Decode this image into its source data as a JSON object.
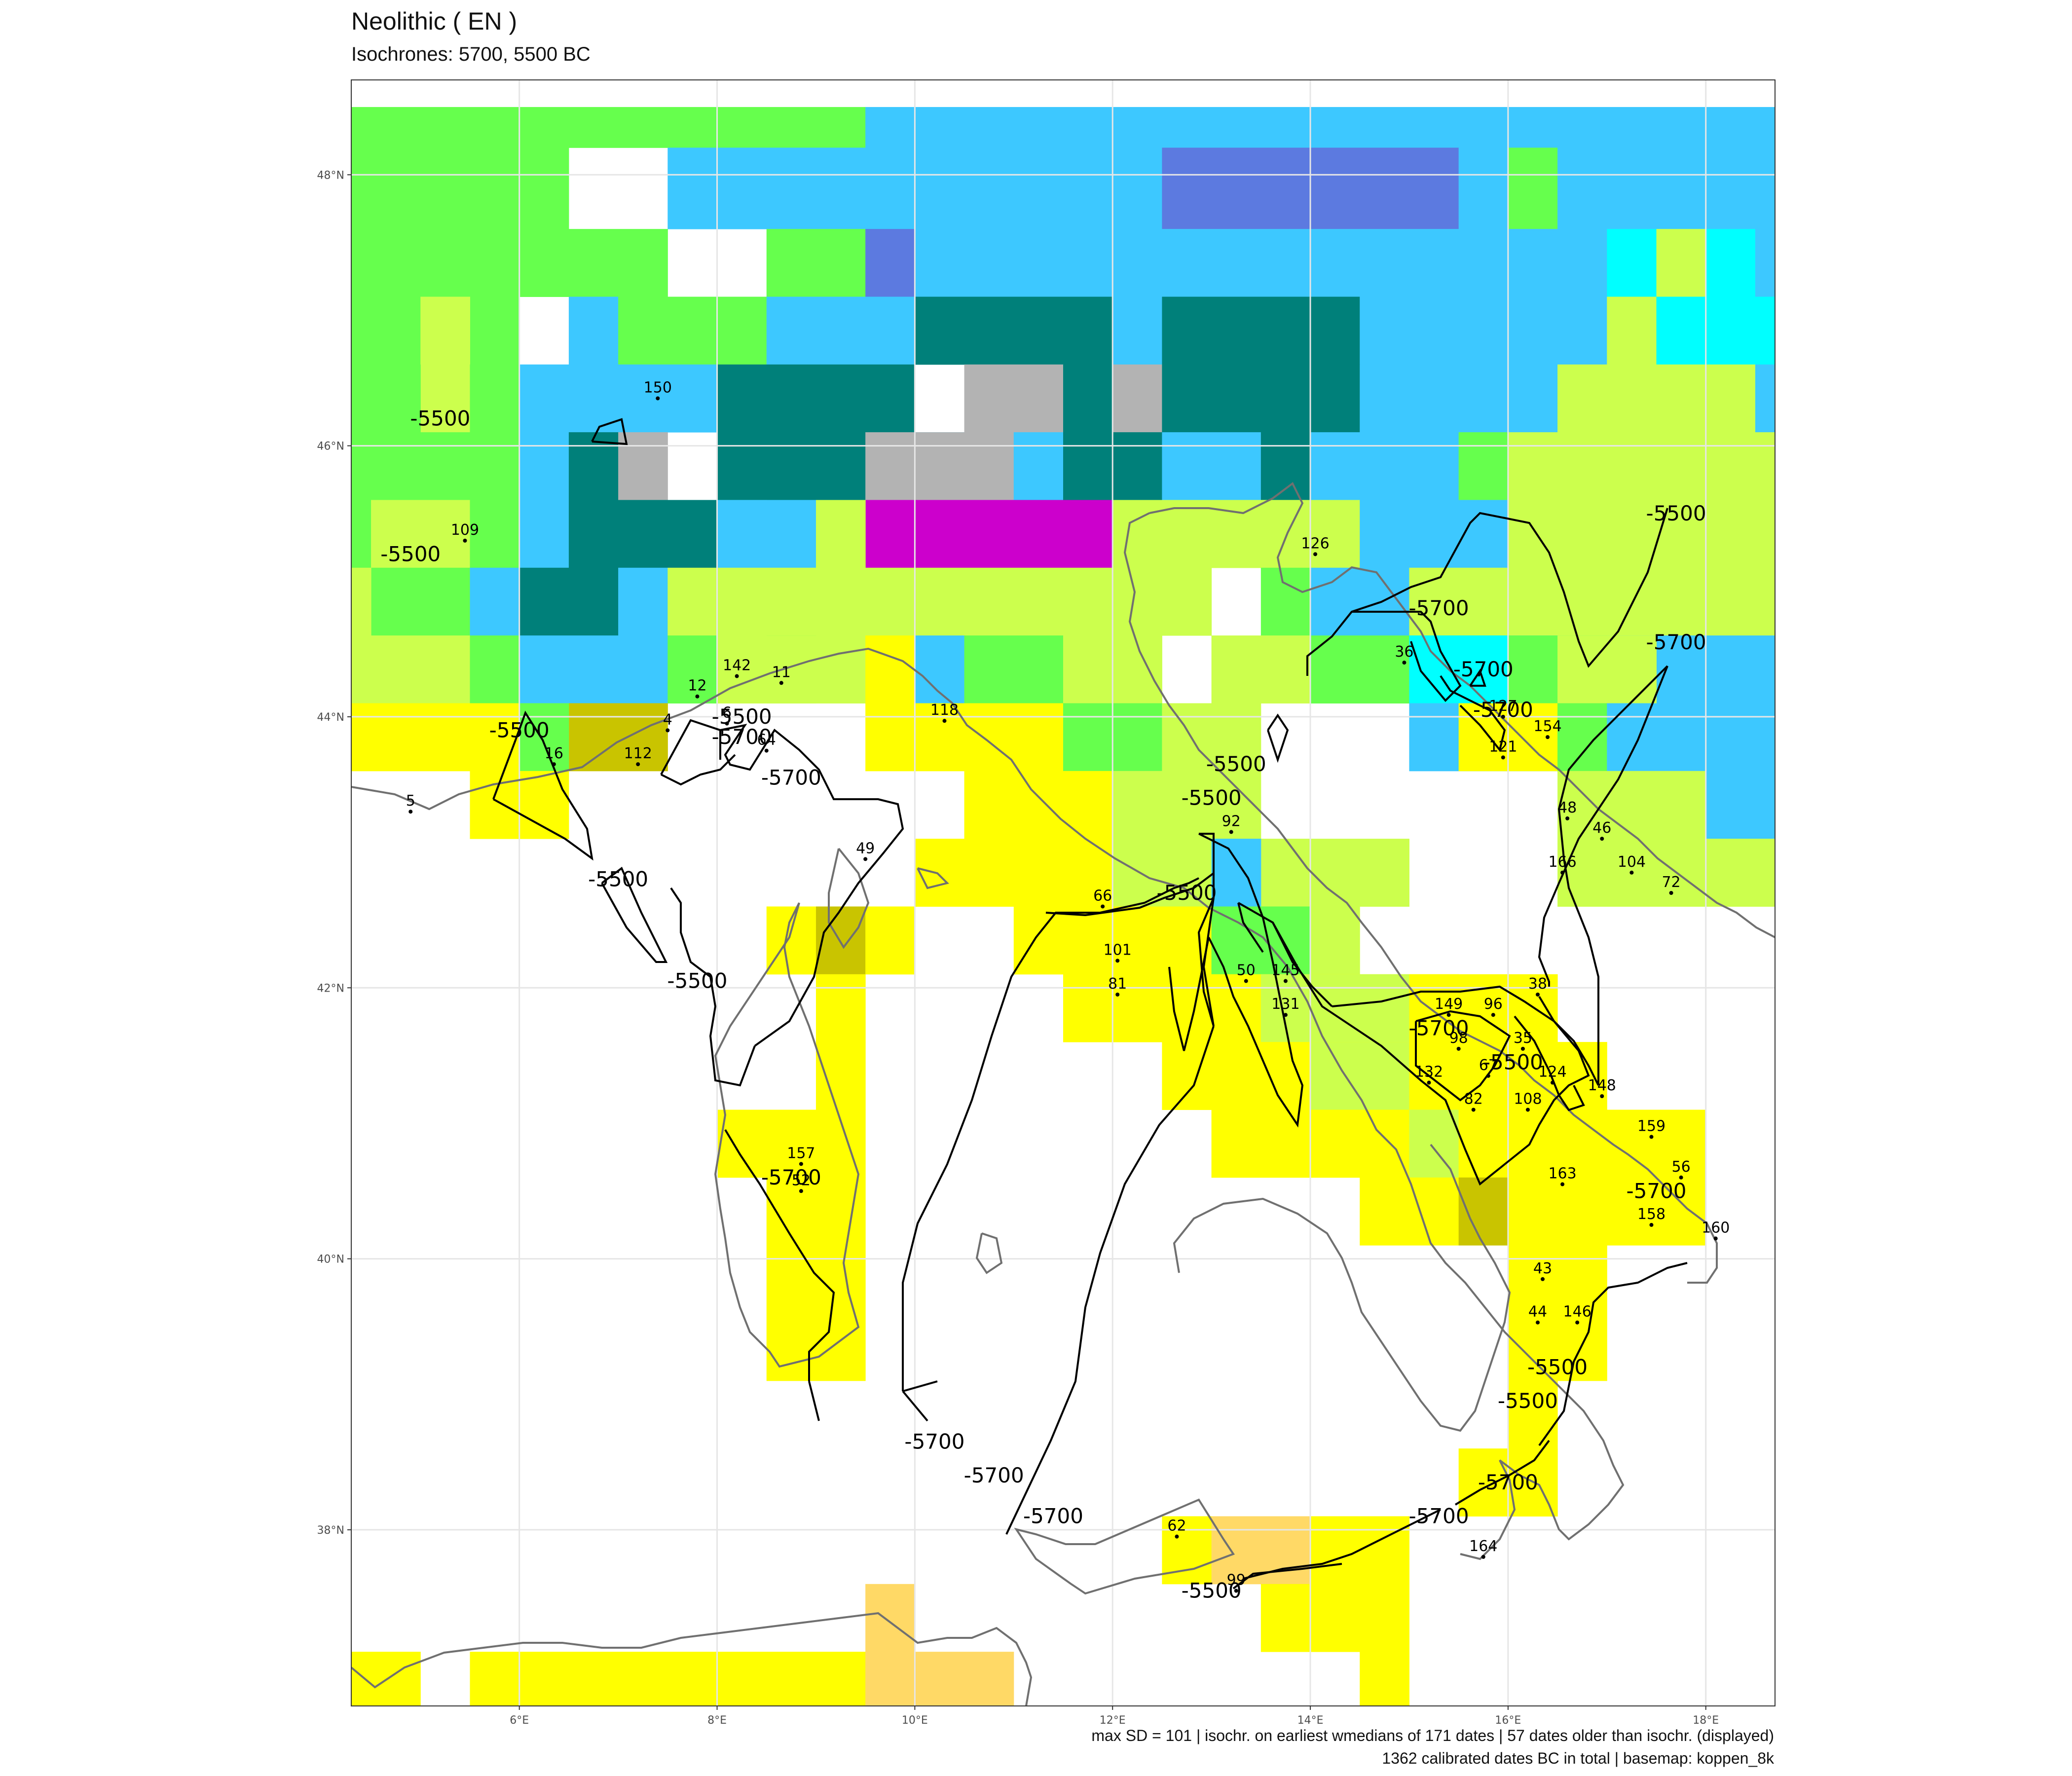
{
  "title": "Neolithic ( EN )",
  "subtitle": "Isochrones: 5700, 5500 BC",
  "caption_line1": "max SD = 101 | isochr. on earliest wmedians of 171 dates | 57 dates older than isochr. (displayed)",
  "caption_line2": "1362 calibrated dates BC in total | basemap: koppen_8k",
  "axes": {
    "x_ticks": [
      "6°E",
      "8°E",
      "10°E",
      "12°E",
      "14°E",
      "16°E",
      "18°E"
    ],
    "y_ticks": [
      "38°N",
      "40°N",
      "42°N",
      "44°N",
      "46°N",
      "48°N"
    ],
    "lon_range": [
      4.3,
      18.7
    ],
    "lat_range": [
      36.7,
      48.7
    ]
  },
  "colors": {
    "green": "#66ff4d",
    "yellowgreen": "#ccff4d",
    "lightblue": "#3dc8ff",
    "teal": "#00807a",
    "grey": "#b3b3b3",
    "magenta": "#cc00cc",
    "periwinkle": "#5c7ae0",
    "cyan": "#00ffff",
    "yellow": "#ffff00",
    "olive": "#c9c400",
    "peach": "#ffd966"
  },
  "isochrone_labels": [
    {
      "text": "-5500",
      "lon": 5.2,
      "lat": 46.2
    },
    {
      "text": "-5500",
      "lon": 4.9,
      "lat": 45.2
    },
    {
      "text": "-5500",
      "lon": 6.0,
      "lat": 43.9
    },
    {
      "text": "-5500",
      "lon": 8.25,
      "lat": 44.0
    },
    {
      "text": "-5700",
      "lon": 8.25,
      "lat": 43.85
    },
    {
      "text": "-5700",
      "lon": 8.75,
      "lat": 43.55
    },
    {
      "text": "-5500",
      "lon": 7.0,
      "lat": 42.8
    },
    {
      "text": "-5500",
      "lon": 7.8,
      "lat": 42.05
    },
    {
      "text": "-5700",
      "lon": 8.75,
      "lat": 40.6
    },
    {
      "text": "-5700",
      "lon": 10.2,
      "lat": 38.65
    },
    {
      "text": "-5700",
      "lon": 10.8,
      "lat": 38.4
    },
    {
      "text": "-5700",
      "lon": 11.4,
      "lat": 38.1
    },
    {
      "text": "-5500",
      "lon": 13.25,
      "lat": 43.65
    },
    {
      "text": "-5500",
      "lon": 13.0,
      "lat": 43.4
    },
    {
      "text": "-5500",
      "lon": 12.75,
      "lat": 42.7
    },
    {
      "text": "-5700",
      "lon": 15.3,
      "lat": 44.8
    },
    {
      "text": "-5700",
      "lon": 15.75,
      "lat": 44.35
    },
    {
      "text": "-5700",
      "lon": 15.95,
      "lat": 44.05
    },
    {
      "text": "-5500",
      "lon": 17.7,
      "lat": 45.5
    },
    {
      "text": "-5700",
      "lon": 17.7,
      "lat": 44.55
    },
    {
      "text": "-5700",
      "lon": 15.3,
      "lat": 41.7
    },
    {
      "text": "-5500",
      "lon": 16.05,
      "lat": 41.45
    },
    {
      "text": "-5700",
      "lon": 17.5,
      "lat": 40.5
    },
    {
      "text": "-5500",
      "lon": 16.5,
      "lat": 39.2
    },
    {
      "text": "-5500",
      "lon": 16.2,
      "lat": 38.95
    },
    {
      "text": "-5700",
      "lon": 16.0,
      "lat": 38.35
    },
    {
      "text": "-5700",
      "lon": 15.3,
      "lat": 38.1
    },
    {
      "text": "-5500",
      "lon": 13.0,
      "lat": 37.55
    }
  ],
  "sites": [
    {
      "id": "150",
      "lon": 7.4,
      "lat": 46.35
    },
    {
      "id": "109",
      "lon": 5.45,
      "lat": 45.3
    },
    {
      "id": "16",
      "lon": 6.35,
      "lat": 43.65
    },
    {
      "id": "5",
      "lon": 4.9,
      "lat": 43.3
    },
    {
      "id": "12",
      "lon": 7.8,
      "lat": 44.15
    },
    {
      "id": "142",
      "lon": 8.2,
      "lat": 44.3
    },
    {
      "id": "11",
      "lon": 8.65,
      "lat": 44.25
    },
    {
      "id": "4",
      "lon": 7.5,
      "lat": 43.9
    },
    {
      "id": "112",
      "lon": 7.2,
      "lat": 43.65
    },
    {
      "id": "64",
      "lon": 8.5,
      "lat": 43.75
    },
    {
      "id": "6",
      "lon": 8.1,
      "lat": 43.95
    },
    {
      "id": "118",
      "lon": 10.3,
      "lat": 43.97
    },
    {
      "id": "49",
      "lon": 9.5,
      "lat": 42.95
    },
    {
      "id": "157",
      "lon": 8.85,
      "lat": 40.7
    },
    {
      "id": "52",
      "lon": 8.85,
      "lat": 40.5
    },
    {
      "id": "66",
      "lon": 11.9,
      "lat": 42.6
    },
    {
      "id": "101",
      "lon": 12.05,
      "lat": 42.2
    },
    {
      "id": "81",
      "lon": 12.05,
      "lat": 41.95
    },
    {
      "id": "92",
      "lon": 13.2,
      "lat": 43.15
    },
    {
      "id": "50",
      "lon": 13.35,
      "lat": 42.05
    },
    {
      "id": "145",
      "lon": 13.75,
      "lat": 42.05
    },
    {
      "id": "131",
      "lon": 13.75,
      "lat": 41.8
    },
    {
      "id": "126",
      "lon": 14.05,
      "lat": 45.2
    },
    {
      "id": "36",
      "lon": 14.95,
      "lat": 44.4
    },
    {
      "id": "127",
      "lon": 15.95,
      "lat": 44.0
    },
    {
      "id": "154",
      "lon": 16.4,
      "lat": 43.85
    },
    {
      "id": "121",
      "lon": 15.95,
      "lat": 43.7
    },
    {
      "id": "48",
      "lon": 16.6,
      "lat": 43.25
    },
    {
      "id": "46",
      "lon": 16.95,
      "lat": 43.1
    },
    {
      "id": "166",
      "lon": 16.55,
      "lat": 42.85
    },
    {
      "id": "104",
      "lon": 17.25,
      "lat": 42.85
    },
    {
      "id": "72",
      "lon": 17.65,
      "lat": 42.7
    },
    {
      "id": "38",
      "lon": 16.3,
      "lat": 41.95
    },
    {
      "id": "149",
      "lon": 15.4,
      "lat": 41.8
    },
    {
      "id": "96",
      "lon": 15.85,
      "lat": 41.8
    },
    {
      "id": "35",
      "lon": 16.15,
      "lat": 41.55
    },
    {
      "id": "98",
      "lon": 15.5,
      "lat": 41.55
    },
    {
      "id": "67",
      "lon": 15.8,
      "lat": 41.35
    },
    {
      "id": "132",
      "lon": 15.2,
      "lat": 41.3
    },
    {
      "id": "124",
      "lon": 16.45,
      "lat": 41.3
    },
    {
      "id": "82",
      "lon": 15.65,
      "lat": 41.1
    },
    {
      "id": "108",
      "lon": 16.2,
      "lat": 41.1
    },
    {
      "id": "148",
      "lon": 16.95,
      "lat": 41.2
    },
    {
      "id": "159",
      "lon": 17.45,
      "lat": 40.9
    },
    {
      "id": "163",
      "lon": 16.55,
      "lat": 40.55
    },
    {
      "id": "56",
      "lon": 17.75,
      "lat": 40.6
    },
    {
      "id": "158",
      "lon": 17.45,
      "lat": 40.25
    },
    {
      "id": "160",
      "lon": 18.1,
      "lat": 40.15
    },
    {
      "id": "43",
      "lon": 16.35,
      "lat": 39.85
    },
    {
      "id": "44",
      "lon": 16.3,
      "lat": 39.53
    },
    {
      "id": "146",
      "lon": 16.7,
      "lat": 39.53
    },
    {
      "id": "164",
      "lon": 15.75,
      "lat": 37.8
    },
    {
      "id": "62",
      "lon": 12.65,
      "lat": 37.95
    },
    {
      "id": "99",
      "lon": 13.25,
      "lat": 37.55
    }
  ]
}
